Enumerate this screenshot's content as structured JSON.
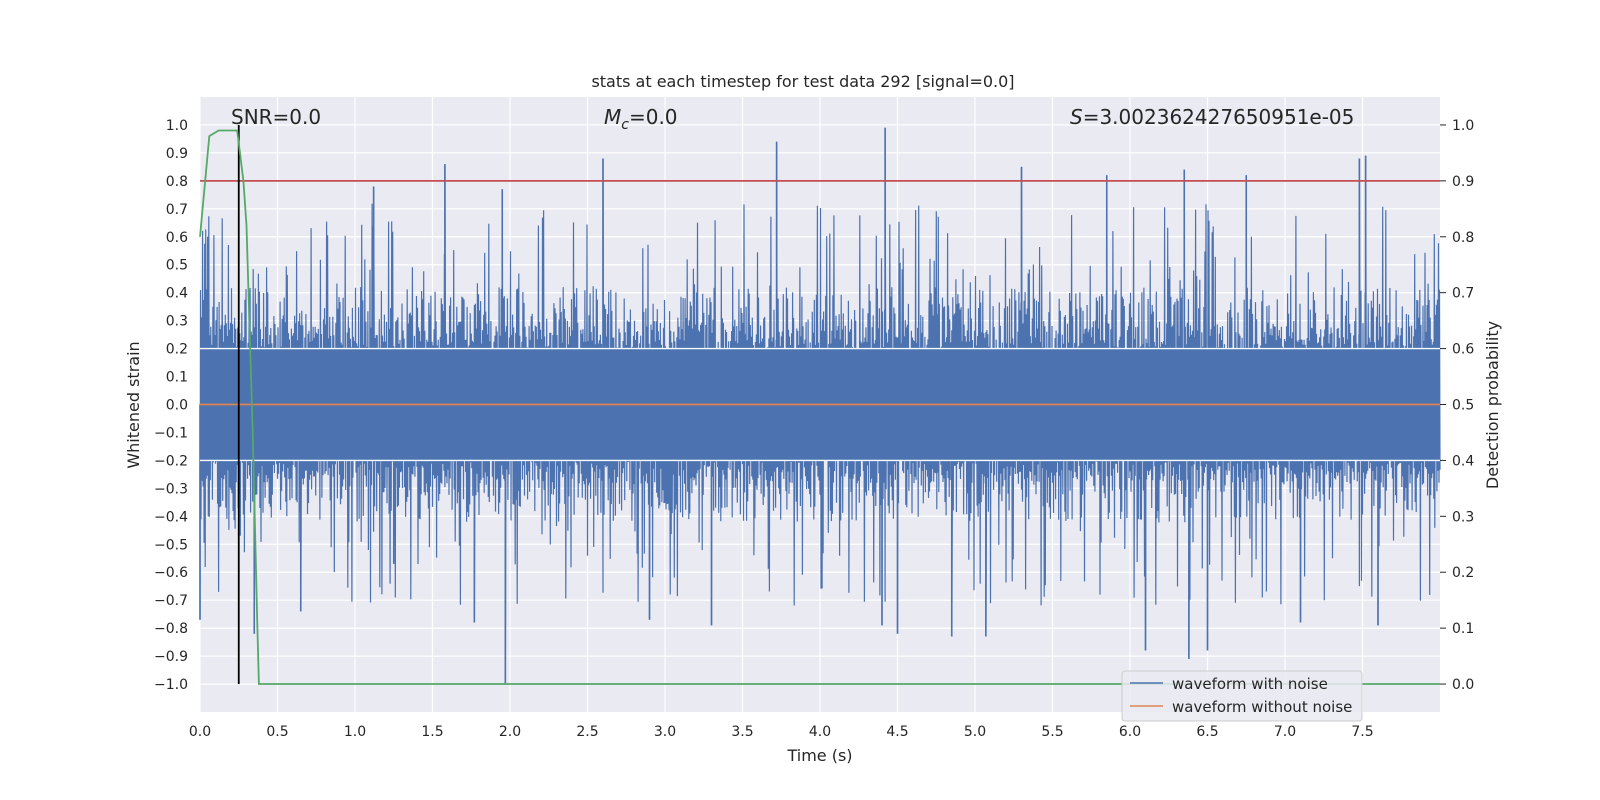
{
  "chart_data": {
    "type": "line",
    "title": "stats at each timestep for test data 292 [signal=0.0]",
    "xlabel": "Time (s)",
    "ylabel": "Whitened strain",
    "y2label": "Detection probability",
    "xlim": [
      0.0,
      8.0
    ],
    "ylim": [
      -1.1,
      1.1
    ],
    "y2lim": [
      -0.05,
      1.05
    ],
    "x_ticks": [
      "0.0",
      "0.5",
      "1.0",
      "1.5",
      "2.0",
      "2.5",
      "3.0",
      "3.5",
      "4.0",
      "4.5",
      "5.0",
      "5.5",
      "6.0",
      "6.5",
      "7.0",
      "7.5"
    ],
    "y_ticks": [
      "1.0",
      "0.9",
      "0.8",
      "0.7",
      "0.6",
      "0.5",
      "0.4",
      "0.3",
      "0.2",
      "0.1",
      "0.0",
      "−0.1",
      "−0.2",
      "−0.3",
      "−0.4",
      "−0.5",
      "−0.6",
      "−0.7",
      "−0.8",
      "−0.9",
      "−1.0"
    ],
    "y2_ticks": [
      "1.0",
      "0.9",
      "0.8",
      "0.7",
      "0.6",
      "0.5",
      "0.4",
      "0.3",
      "0.2",
      "0.1",
      "0.0"
    ],
    "annotations": {
      "snr": "SNR=0.0",
      "mc_symbol": "M",
      "mc_sub": "c",
      "mc_value": "=0.0",
      "s_symbol": "S",
      "s_value": "=3.002362427650951e-05"
    },
    "legend": {
      "position": "lower-right",
      "entries": [
        {
          "label": "waveform with noise",
          "color": "#4c72b0"
        },
        {
          "label": "waveform without noise",
          "color": "#dd8452"
        }
      ]
    },
    "series": [
      {
        "name": "waveform with noise",
        "color": "#4c72b0",
        "description": "dense noise, typical amplitude about ±0.4, occasional spikes",
        "spikes": [
          {
            "x": 0.0,
            "y": -0.77
          },
          {
            "x": 0.05,
            "y": 0.6
          },
          {
            "x": 0.35,
            "y": -0.82
          },
          {
            "x": 0.65,
            "y": -0.74
          },
          {
            "x": 1.12,
            "y": 0.78
          },
          {
            "x": 1.25,
            "y": -0.57
          },
          {
            "x": 1.58,
            "y": 0.86
          },
          {
            "x": 1.77,
            "y": -0.78
          },
          {
            "x": 1.95,
            "y": 0.77
          },
          {
            "x": 1.97,
            "y": -1.0
          },
          {
            "x": 2.6,
            "y": 0.88
          },
          {
            "x": 2.9,
            "y": -0.77
          },
          {
            "x": 3.3,
            "y": -0.79
          },
          {
            "x": 3.72,
            "y": 0.94
          },
          {
            "x": 4.42,
            "y": 0.99
          },
          {
            "x": 4.4,
            "y": -0.79
          },
          {
            "x": 4.5,
            "y": -0.82
          },
          {
            "x": 4.85,
            "y": -0.83
          },
          {
            "x": 5.07,
            "y": -0.83
          },
          {
            "x": 5.3,
            "y": 0.85
          },
          {
            "x": 5.85,
            "y": 0.82
          },
          {
            "x": 6.1,
            "y": -0.88
          },
          {
            "x": 6.35,
            "y": 0.84
          },
          {
            "x": 6.38,
            "y": -0.91
          },
          {
            "x": 6.5,
            "y": -0.88
          },
          {
            "x": 6.75,
            "y": 0.82
          },
          {
            "x": 7.1,
            "y": -0.78
          },
          {
            "x": 7.48,
            "y": 0.88
          },
          {
            "x": 7.52,
            "y": 0.89
          },
          {
            "x": 7.6,
            "y": -0.79
          }
        ]
      },
      {
        "name": "waveform without noise",
        "color": "#dd8452",
        "x": [
          0.0,
          8.0
        ],
        "y": [
          0.0,
          0.0
        ]
      },
      {
        "name": "detection probability",
        "color": "#55a868",
        "axis": "right",
        "x": [
          0.0,
          0.06,
          0.12,
          0.18,
          0.24,
          0.28,
          0.3,
          0.34,
          0.37,
          0.38,
          0.4,
          8.0
        ],
        "y": [
          0.8,
          0.98,
          0.99,
          0.99,
          0.99,
          0.9,
          0.82,
          0.45,
          0.1,
          0.0,
          0.0,
          0.0
        ]
      }
    ],
    "threshold_line": {
      "value": 0.9,
      "axis": "right",
      "color": "#c44e52"
    },
    "vertical_marker": {
      "x": 0.25,
      "y_from": -1.0,
      "y_to": 1.0,
      "color": "#000000"
    }
  }
}
